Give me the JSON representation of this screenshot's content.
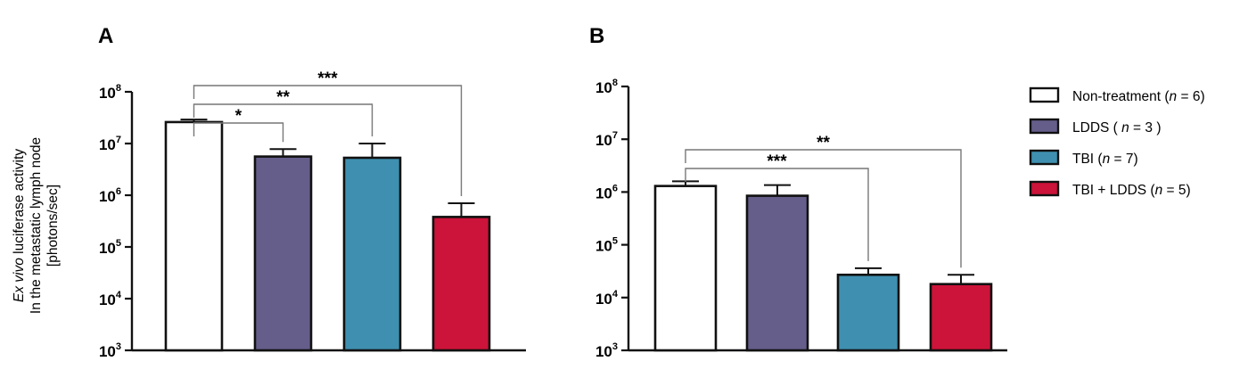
{
  "colors": {
    "Non-treatment": "#ffffff",
    "LDDS": "#655e8a",
    "TBI": "#3f90b0",
    "TBI + LDDS": "#cc1339",
    "axis": "#111111",
    "bracket": "#777777"
  },
  "legend": [
    {
      "key": "Non-treatment",
      "label": "Non-treatment (",
      "n_symbol": "n",
      "n_value": " = 6)"
    },
    {
      "key": "LDDS",
      "label": "LDDS ( ",
      "n_symbol": "n",
      "n_value": " = 3 )"
    },
    {
      "key": "TBI",
      "label": "TBI (",
      "n_symbol": "n",
      "n_value": " = 7)"
    },
    {
      "key": "TBI + LDDS",
      "label": "TBI + LDDS (",
      "n_symbol": "n",
      "n_value": " = 5)"
    }
  ],
  "chart_data": [
    {
      "type": "bar",
      "panel": "A",
      "ylabel_lines": [
        {
          "italic": "Ex vivo",
          "rest": " luciferase activity"
        },
        {
          "italic": "",
          "rest": "In the metastatic lymph node"
        },
        {
          "italic": "",
          "rest": "[photons/sec]"
        }
      ],
      "yscale": "log",
      "ylim": [
        1000,
        100000000
      ],
      "yticks": [
        {
          "value": 1000,
          "base": "10",
          "exp": "3"
        },
        {
          "value": 10000,
          "base": "10",
          "exp": "4"
        },
        {
          "value": 100000,
          "base": "10",
          "exp": "5"
        },
        {
          "value": 1000000,
          "base": "10",
          "exp": "6"
        },
        {
          "value": 10000000,
          "base": "10",
          "exp": "7"
        },
        {
          "value": 100000000,
          "base": "10",
          "exp": "8"
        }
      ],
      "categories": [
        "Non-treatment",
        "LDDS",
        "TBI",
        "TBI + LDDS"
      ],
      "values": [
        26000000,
        5600000,
        5300000,
        380000
      ],
      "error_upper": [
        29000000,
        7800000,
        10000000,
        700000
      ],
      "significance": [
        {
          "from": 0,
          "to": 1,
          "label": "*",
          "level": 1
        },
        {
          "from": 0,
          "to": 2,
          "label": "**",
          "level": 2
        },
        {
          "from": 0,
          "to": 3,
          "label": "***",
          "level": 3
        }
      ]
    },
    {
      "type": "bar",
      "panel": "B",
      "ylabel_lines": [],
      "yscale": "log",
      "ylim": [
        1000,
        100000000
      ],
      "yticks": [
        {
          "value": 1000,
          "base": "10",
          "exp": "3"
        },
        {
          "value": 10000,
          "base": "10",
          "exp": "4"
        },
        {
          "value": 100000,
          "base": "10",
          "exp": "5"
        },
        {
          "value": 1000000,
          "base": "10",
          "exp": "6"
        },
        {
          "value": 10000000,
          "base": "10",
          "exp": "7"
        },
        {
          "value": 100000000,
          "base": "10",
          "exp": "8"
        }
      ],
      "categories": [
        "Non-treatment",
        "LDDS",
        "TBI",
        "TBI + LDDS"
      ],
      "values": [
        1300000,
        850000,
        27000,
        18000
      ],
      "error_upper": [
        1600000,
        1350000,
        36000,
        27000
      ],
      "significance": [
        {
          "from": 0,
          "to": 2,
          "label": "***",
          "level": 1
        },
        {
          "from": 0,
          "to": 3,
          "label": "**",
          "level": 2
        }
      ]
    }
  ]
}
